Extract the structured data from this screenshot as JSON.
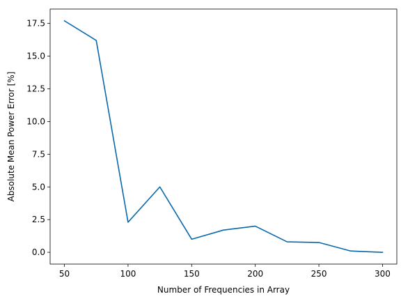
{
  "chart_data": {
    "type": "line",
    "title": "",
    "xlabel": "Number of Frequencies in Array",
    "ylabel": "Absolute Mean Power Error [%]",
    "xlim": [
      38.75,
      311.25
    ],
    "ylim": [
      -0.9,
      18.6
    ],
    "grid": false,
    "legend": "none",
    "x_ticks": [
      50,
      100,
      150,
      200,
      250,
      300
    ],
    "x_tick_labels": [
      "50",
      "100",
      "150",
      "200",
      "250",
      "300"
    ],
    "y_ticks": [
      0,
      2.5,
      5,
      7.5,
      10,
      12.5,
      15,
      17.5
    ],
    "y_tick_labels": [
      "0.0",
      "2.5",
      "5.0",
      "7.5",
      "10.0",
      "12.5",
      "15.0",
      "17.5"
    ],
    "series": [
      {
        "color": "#0868ac",
        "x": [
          50,
          75,
          100,
          125,
          150,
          175,
          200,
          225,
          250,
          275,
          300
        ],
        "y": [
          17.7,
          16.2,
          2.3,
          5.0,
          1.0,
          1.7,
          2.0,
          0.8,
          0.75,
          0.1,
          0.0
        ]
      }
    ]
  }
}
